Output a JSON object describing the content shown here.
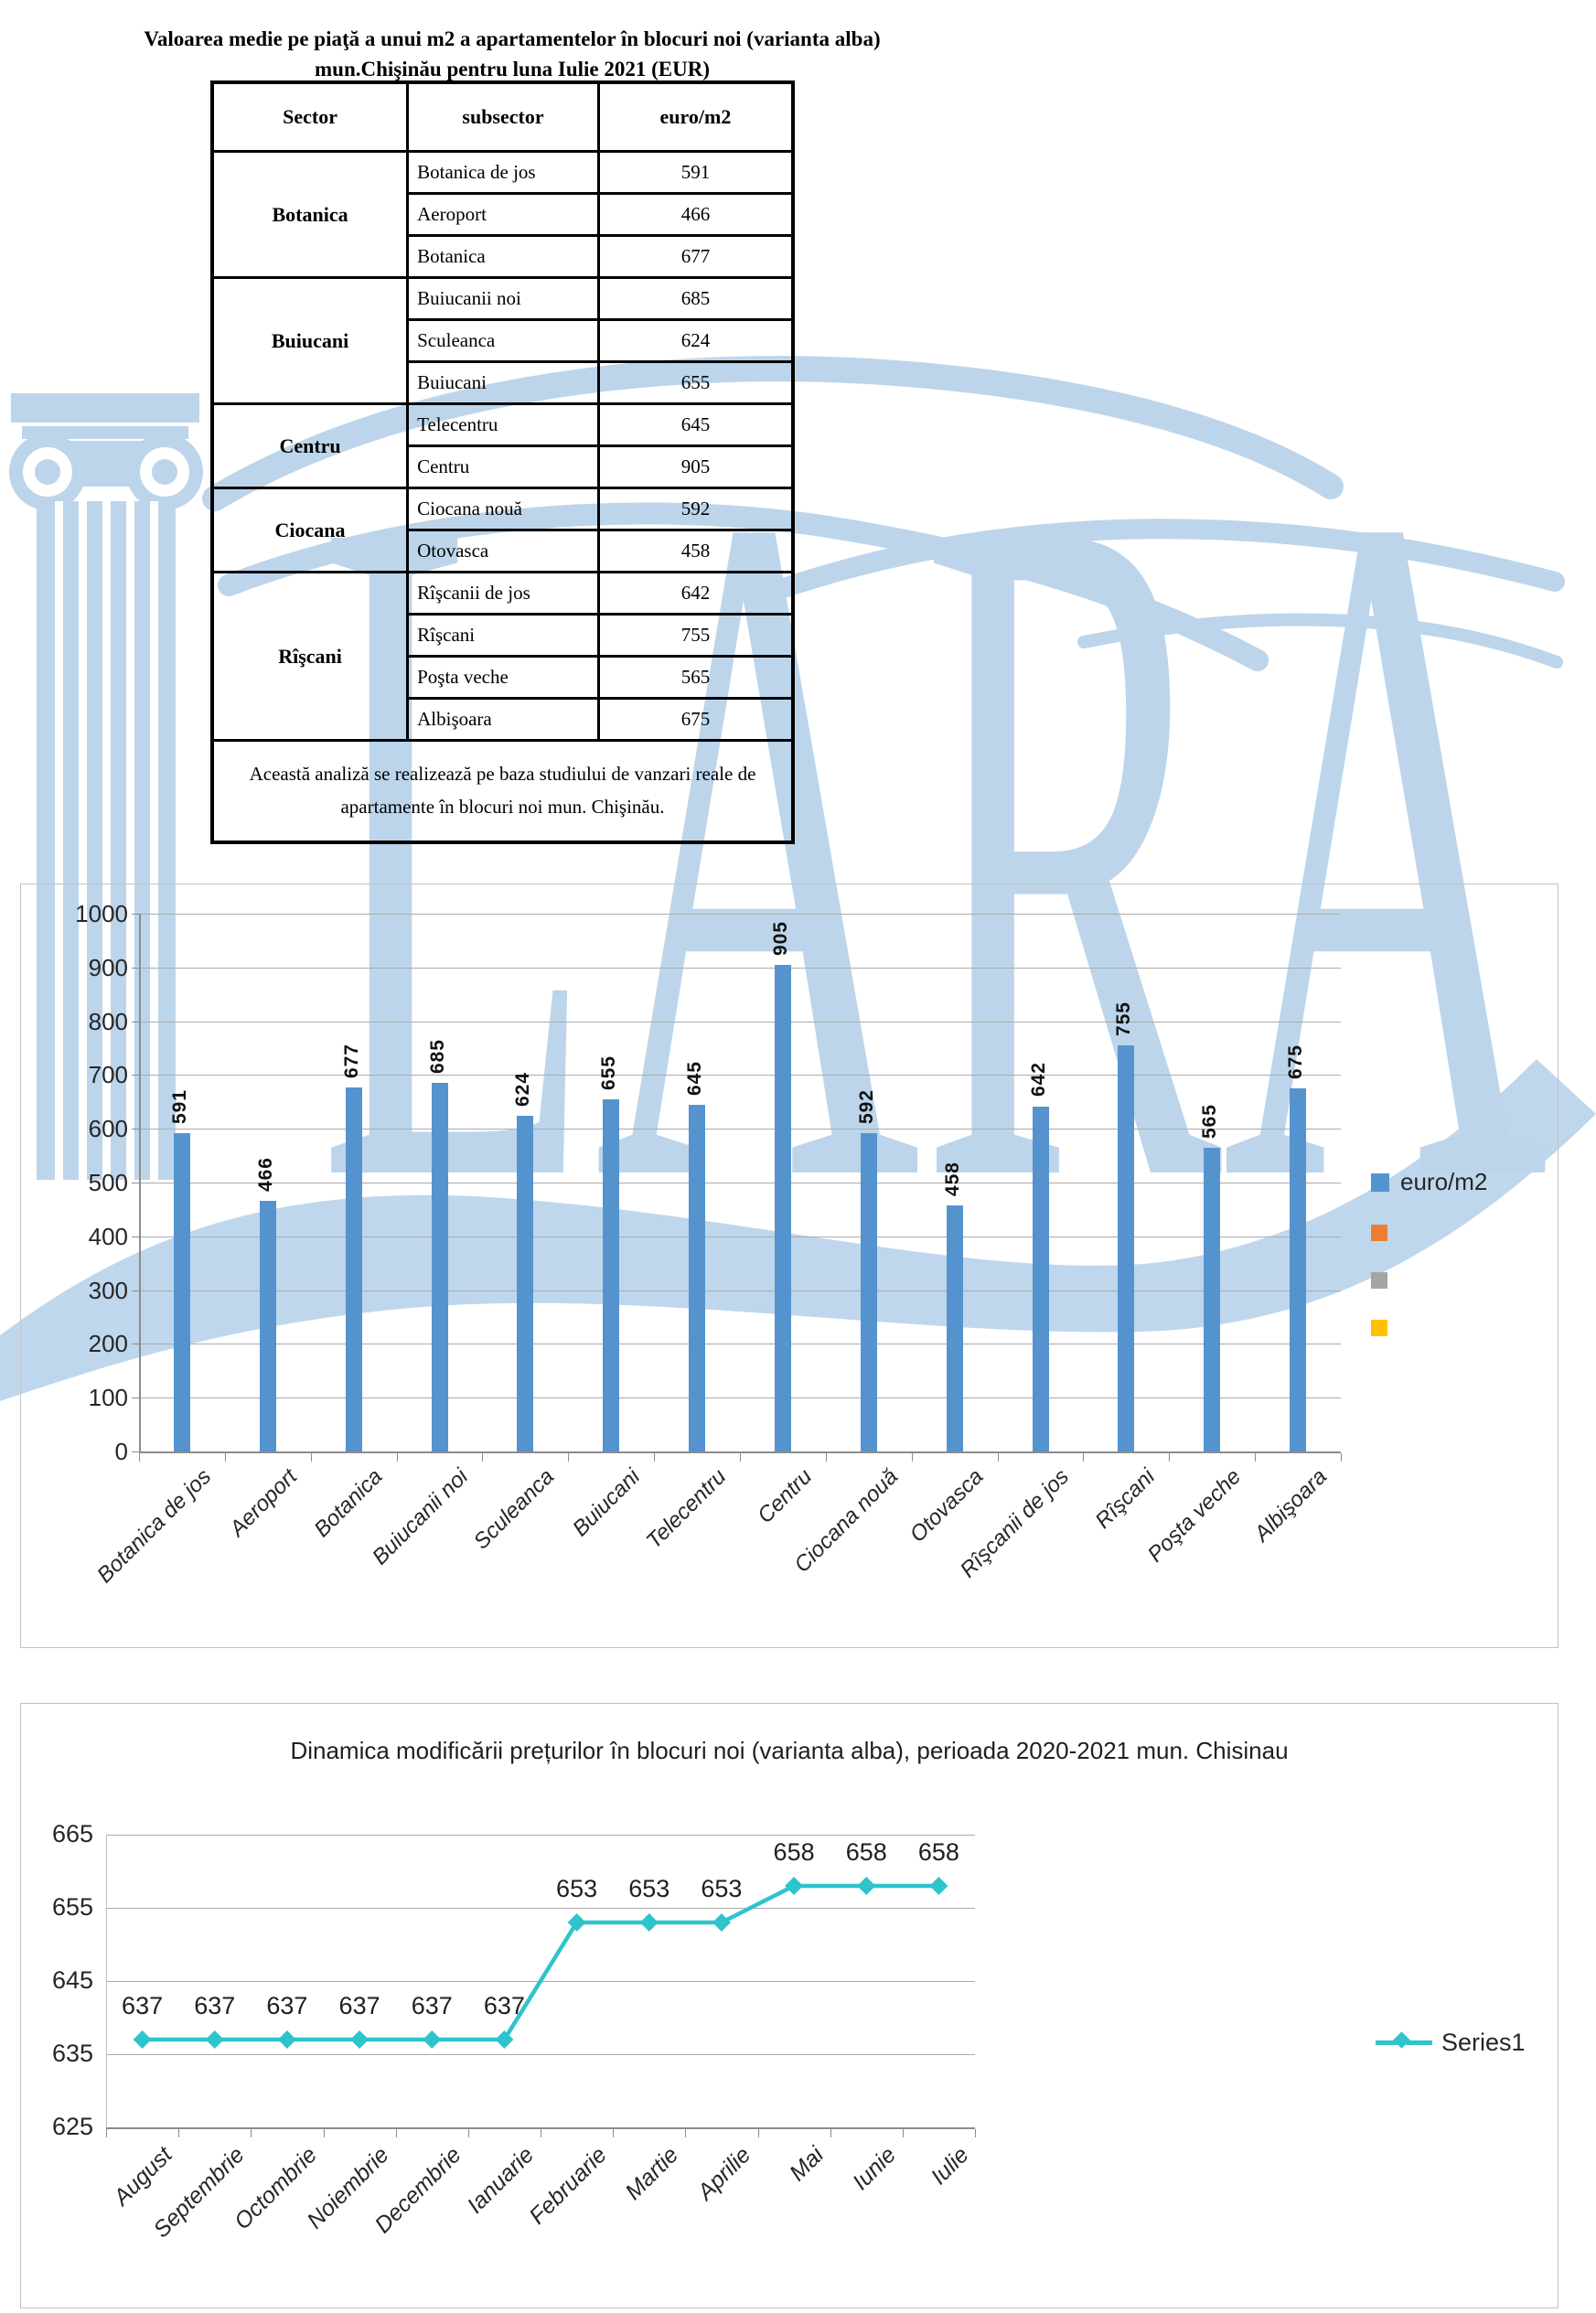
{
  "doc": {
    "title_line1": "Valoarea medie pe piaţă a unui m2 a apartamentelor în blocuri noi (varianta alba)",
    "title_line2": "mun.Chişinău pentru luna Iulie 2021 (EUR)"
  },
  "table": {
    "headers": [
      "Sector",
      "subsector",
      "euro/m2"
    ],
    "groups": [
      {
        "sector": "Botanica",
        "rows": [
          [
            "Botanica de jos",
            "591"
          ],
          [
            "Aeroport",
            "466"
          ],
          [
            "Botanica",
            "677"
          ]
        ]
      },
      {
        "sector": "Buiucani",
        "rows": [
          [
            "Buiucanii noi",
            "685"
          ],
          [
            "Sculeanca",
            "624"
          ],
          [
            "Buiucani",
            "655"
          ]
        ]
      },
      {
        "sector": "Centru",
        "rows": [
          [
            "Telecentru",
            "645"
          ],
          [
            "Centru",
            "905"
          ]
        ]
      },
      {
        "sector": "Ciocana",
        "rows": [
          [
            "Ciocana nouă",
            "592"
          ],
          [
            "Otovasca",
            "458"
          ]
        ]
      },
      {
        "sector": "Rîşcani",
        "rows": [
          [
            "Rîşcanii de jos",
            "642"
          ],
          [
            "Rîşcani",
            "755"
          ],
          [
            "Poşta veche",
            "565"
          ],
          [
            "Albişoara",
            "675"
          ]
        ]
      }
    ],
    "footnote": "Această analiză se realizează pe baza studiului de vanzari reale de apartamente în blocuri noi mun. Chişinău."
  },
  "watermark": {
    "text": "LARA",
    "color": "#BCD5EB"
  },
  "chart_data": [
    {
      "type": "bar",
      "title": "",
      "categories": [
        "Botanica de jos",
        "Aeroport",
        "Botanica",
        "Buiucanii noi",
        "Sculeanca",
        "Buiucani",
        "Telecentru",
        "Centru",
        "Ciocana nouă",
        "Otovasca",
        "Rîşcanii de jos",
        "Rîşcani",
        "Poşta veche",
        "Albişoara"
      ],
      "series": [
        {
          "name": "euro/m2",
          "values": [
            591,
            466,
            677,
            685,
            624,
            655,
            645,
            905,
            592,
            458,
            642,
            755,
            565,
            675
          ],
          "color": "#5593CE"
        }
      ],
      "xlabel": "",
      "ylabel": "",
      "ylim": [
        0,
        1000
      ],
      "ytick_step": 100,
      "grid": true,
      "value_labels": "rotated-vertical",
      "legend_position": "right",
      "legend": [
        {
          "label": "euro/m2",
          "color": "#5593CE"
        },
        {
          "label": "",
          "color": "#ED7D31"
        },
        {
          "label": "",
          "color": "#A5A5A5"
        },
        {
          "label": "",
          "color": "#FFC000"
        }
      ]
    },
    {
      "type": "line",
      "title": "Dinamica modificării prețurilor în blocuri noi (varianta alba), perioada 2020-2021 mun. Chisinau",
      "categories": [
        "August",
        "Septembrie",
        "Octombrie",
        "Noiembrie",
        "Decembrie",
        "Ianuarie",
        "Februarie",
        "Martie",
        "Aprilie",
        "Mai",
        "Iunie",
        "Iulie"
      ],
      "series": [
        {
          "name": "Series1",
          "values": [
            637,
            637,
            637,
            637,
            637,
            637,
            653,
            653,
            653,
            658,
            658,
            658
          ],
          "color": "#2EC4CC",
          "marker": "diamond"
        }
      ],
      "xlabel": "",
      "ylabel": "",
      "ylim": [
        625,
        665
      ],
      "ytick_step": 10,
      "grid": true,
      "value_labels": "above",
      "legend_position": "right"
    }
  ]
}
